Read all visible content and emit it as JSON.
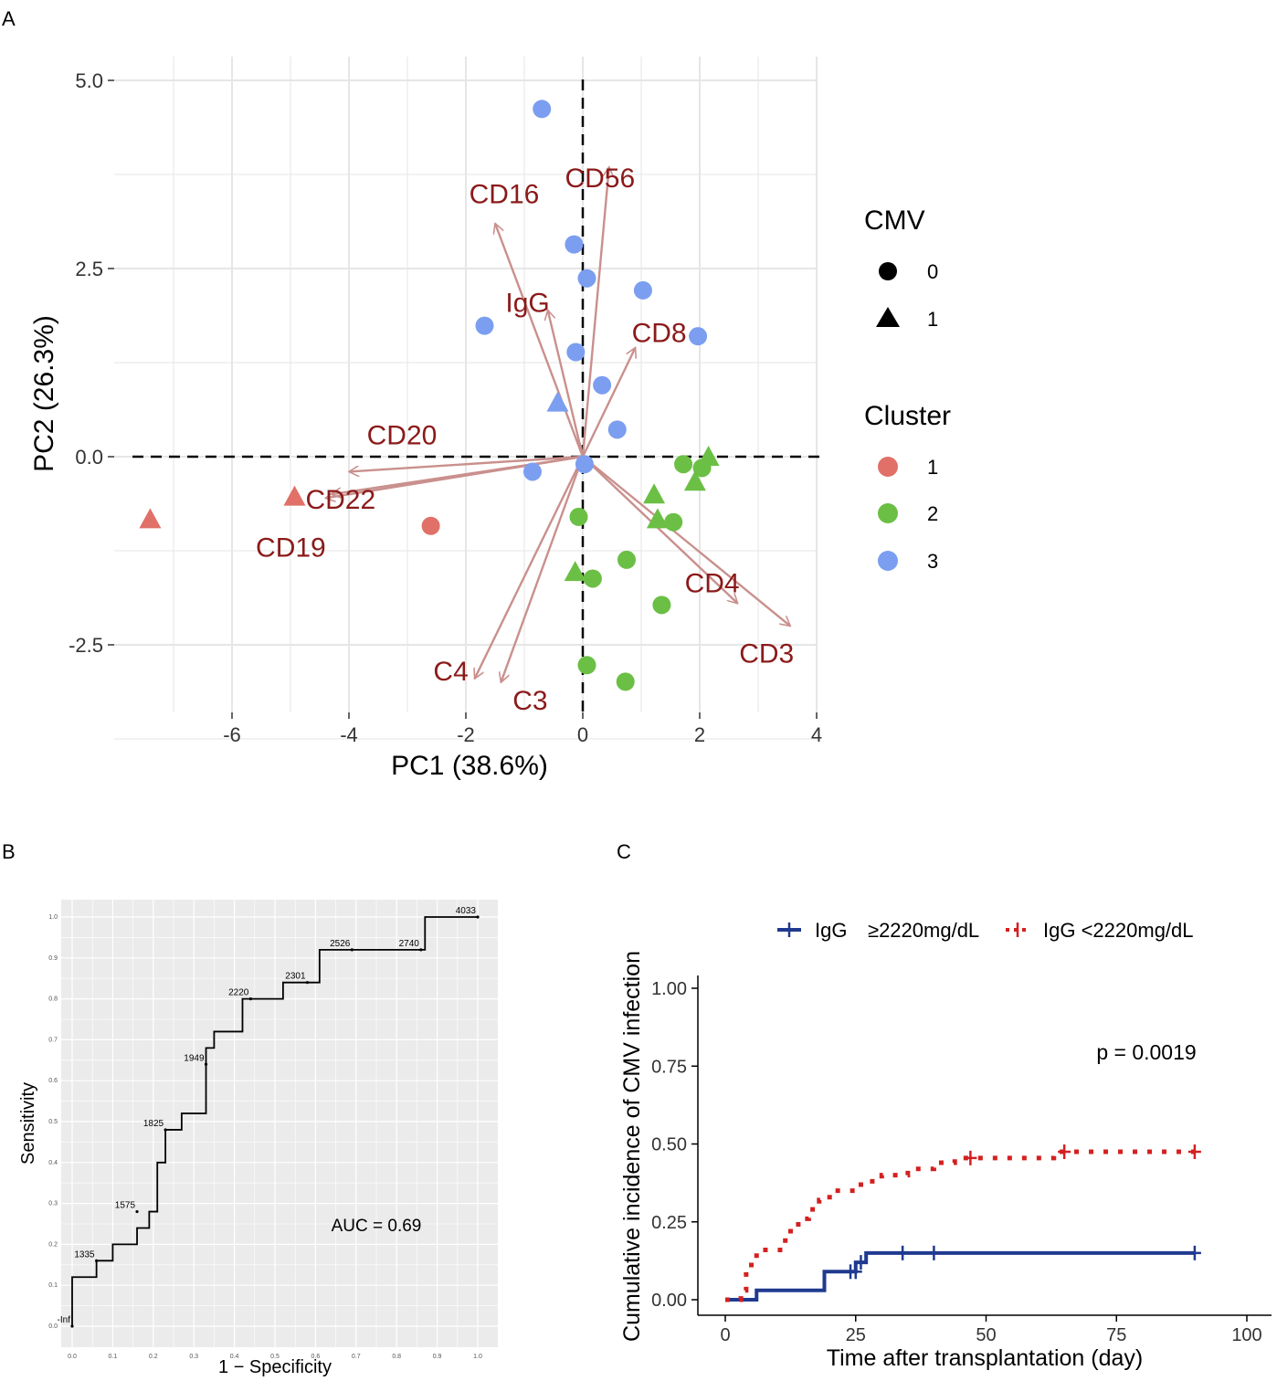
{
  "panel_labels": {
    "a": "A",
    "b": "B",
    "c": "C"
  },
  "chart_data": [
    {
      "type": "scatter",
      "subtype": "pca-biplot",
      "xlabel": "PC1 (38.6%)",
      "ylabel": "PC2 (26.3%)",
      "xlim": [
        -7.5,
        4.0
      ],
      "ylim": [
        -3.4,
        5.0
      ],
      "x_ticks": [
        -6,
        -4,
        -2,
        0,
        2,
        4
      ],
      "y_ticks": [
        -2.5,
        0.0,
        2.5,
        5.0
      ],
      "y_tick_labels": [
        "-2.5",
        "0.0",
        "2.5",
        "5.0"
      ],
      "grid": true,
      "reference_lines": [
        "x = 0 (dashed)",
        "y = 0 (dashed)"
      ],
      "legend": {
        "cmv_title": "CMV",
        "cmv_entries": [
          {
            "label": "0",
            "shape": "circle"
          },
          {
            "label": "1",
            "shape": "triangle"
          }
        ],
        "cluster_title": "Cluster",
        "cluster_entries": [
          {
            "label": "1",
            "color": "#e07068"
          },
          {
            "label": "2",
            "color": "#6bbf45"
          },
          {
            "label": "3",
            "color": "#7b9ef0"
          }
        ]
      },
      "points": [
        {
          "x": -0.7,
          "y": 4.62,
          "cmv": 0,
          "cluster": 3
        },
        {
          "x": -0.15,
          "y": 2.82,
          "cmv": 0,
          "cluster": 3
        },
        {
          "x": 0.07,
          "y": 2.37,
          "cmv": 0,
          "cluster": 3
        },
        {
          "x": 1.03,
          "y": 2.21,
          "cmv": 0,
          "cluster": 3
        },
        {
          "x": 1.97,
          "y": 1.6,
          "cmv": 0,
          "cluster": 3
        },
        {
          "x": -1.68,
          "y": 1.74,
          "cmv": 0,
          "cluster": 3
        },
        {
          "x": -0.12,
          "y": 1.39,
          "cmv": 0,
          "cluster": 3
        },
        {
          "x": 0.33,
          "y": 0.95,
          "cmv": 0,
          "cluster": 3
        },
        {
          "x": 0.59,
          "y": 0.36,
          "cmv": 0,
          "cluster": 3
        },
        {
          "x": -0.43,
          "y": 0.72,
          "cmv": 1,
          "cluster": 3
        },
        {
          "x": -0.86,
          "y": -0.2,
          "cmv": 0,
          "cluster": 3
        },
        {
          "x": 0.03,
          "y": -0.1,
          "cmv": 0,
          "cluster": 3
        },
        {
          "x": -7.4,
          "y": -0.83,
          "cmv": 1,
          "cluster": 1
        },
        {
          "x": -4.93,
          "y": -0.53,
          "cmv": 1,
          "cluster": 1
        },
        {
          "x": -2.6,
          "y": -0.92,
          "cmv": 0,
          "cluster": 1
        },
        {
          "x": 1.72,
          "y": -0.1,
          "cmv": 0,
          "cluster": 2
        },
        {
          "x": 2.04,
          "y": -0.15,
          "cmv": 0,
          "cluster": 2
        },
        {
          "x": 2.15,
          "y": 0.0,
          "cmv": 1,
          "cluster": 2
        },
        {
          "x": 1.92,
          "y": -0.33,
          "cmv": 1,
          "cluster": 2
        },
        {
          "x": 1.22,
          "y": -0.5,
          "cmv": 1,
          "cluster": 2
        },
        {
          "x": 1.28,
          "y": -0.83,
          "cmv": 1,
          "cluster": 2
        },
        {
          "x": 1.55,
          "y": -0.87,
          "cmv": 0,
          "cluster": 2
        },
        {
          "x": -0.07,
          "y": -0.8,
          "cmv": 0,
          "cluster": 2
        },
        {
          "x": 0.75,
          "y": -1.37,
          "cmv": 0,
          "cluster": 2
        },
        {
          "x": -0.13,
          "y": -1.53,
          "cmv": 1,
          "cluster": 2
        },
        {
          "x": 0.17,
          "y": -1.62,
          "cmv": 0,
          "cluster": 2
        },
        {
          "x": 1.35,
          "y": -1.97,
          "cmv": 0,
          "cluster": 2
        },
        {
          "x": 0.07,
          "y": -2.77,
          "cmv": 0,
          "cluster": 2
        },
        {
          "x": 0.73,
          "y": -2.99,
          "cmv": 0,
          "cluster": 2
        }
      ],
      "loadings": [
        {
          "label": "CD16",
          "x": -1.5,
          "y": 3.1
        },
        {
          "label": "CD56",
          "x": 0.45,
          "y": 3.85
        },
        {
          "label": "IgG",
          "x": -0.6,
          "y": 1.95
        },
        {
          "label": "CD8",
          "x": 0.9,
          "y": 1.45
        },
        {
          "label": "CD20",
          "x": -4.0,
          "y": -0.2
        },
        {
          "label": "CD22",
          "x": -4.3,
          "y": -0.5
        },
        {
          "label": "CD19",
          "x": -4.4,
          "y": -0.55
        },
        {
          "label": "CD4",
          "x": 2.65,
          "y": -1.95
        },
        {
          "label": "CD3",
          "x": 3.55,
          "y": -2.25
        },
        {
          "label": "C4",
          "x": -1.85,
          "y": -2.95
        },
        {
          "label": "C3",
          "x": -1.4,
          "y": -3.0
        }
      ]
    },
    {
      "type": "line",
      "subtype": "roc-curve",
      "xlabel": "1 − Specificity",
      "ylabel": "Sensitivity",
      "xlim": [
        0,
        1
      ],
      "ylim": [
        0,
        1
      ],
      "x_ticks": [
        0.0,
        0.1,
        0.2,
        0.3,
        0.4,
        0.5,
        0.6,
        0.7,
        0.8,
        0.9,
        1.0
      ],
      "x_tick_labels": [
        "0.0",
        "0.1",
        "0.2",
        "0.3",
        "0.4",
        "0.5",
        "0.6",
        "0.7",
        "0.8",
        "0.9",
        "1.0"
      ],
      "y_ticks": [
        0.0,
        0.1,
        0.2,
        0.3,
        0.4,
        0.5,
        0.6,
        0.7,
        0.8,
        0.9,
        1.0
      ],
      "y_tick_labels": [
        "0.0",
        "0.1",
        "0.2",
        "0.3",
        "0.4",
        "0.5",
        "0.6",
        "0.7",
        "0.8",
        "0.9",
        "1.0"
      ],
      "annotation": "AUC = 0.69",
      "auc": 0.69,
      "curve": [
        [
          0,
          0
        ],
        [
          0,
          0.12
        ],
        [
          0.06,
          0.12
        ],
        [
          0.06,
          0.16
        ],
        [
          0.1,
          0.16
        ],
        [
          0.1,
          0.2
        ],
        [
          0.16,
          0.2
        ],
        [
          0.16,
          0.24
        ],
        [
          0.19,
          0.24
        ],
        [
          0.19,
          0.28
        ],
        [
          0.21,
          0.28
        ],
        [
          0.21,
          0.4
        ],
        [
          0.23,
          0.4
        ],
        [
          0.23,
          0.48
        ],
        [
          0.27,
          0.48
        ],
        [
          0.27,
          0.52
        ],
        [
          0.33,
          0.52
        ],
        [
          0.33,
          0.68
        ],
        [
          0.35,
          0.68
        ],
        [
          0.35,
          0.72
        ],
        [
          0.42,
          0.72
        ],
        [
          0.42,
          0.8
        ],
        [
          0.52,
          0.8
        ],
        [
          0.52,
          0.84
        ],
        [
          0.61,
          0.84
        ],
        [
          0.61,
          0.92
        ],
        [
          0.87,
          0.92
        ],
        [
          0.87,
          1.0
        ],
        [
          1.0,
          1.0
        ]
      ],
      "thresholds": [
        {
          "label": "-Inf",
          "x": 0.0,
          "y": 0.0
        },
        {
          "label": "1335",
          "x": 0.06,
          "y": 0.16
        },
        {
          "label": "1575",
          "x": 0.16,
          "y": 0.28
        },
        {
          "label": "1825",
          "x": 0.23,
          "y": 0.48
        },
        {
          "label": "1949",
          "x": 0.33,
          "y": 0.64
        },
        {
          "label": "2220",
          "x": 0.44,
          "y": 0.8
        },
        {
          "label": "2301",
          "x": 0.58,
          "y": 0.84
        },
        {
          "label": "2526",
          "x": 0.69,
          "y": 0.92
        },
        {
          "label": "2740",
          "x": 0.86,
          "y": 0.92
        },
        {
          "label": "4033",
          "x": 1.0,
          "y": 1.0
        }
      ]
    },
    {
      "type": "line",
      "subtype": "cumulative-incidence",
      "xlabel": "Time after transplantation (day)",
      "ylabel": "Cumulative incidence of CMV infection",
      "xlim": [
        0,
        100
      ],
      "ylim": [
        0,
        1
      ],
      "x_ticks": [
        0,
        25,
        50,
        75,
        100
      ],
      "x_tick_labels": [
        "0",
        "25",
        "50",
        "75",
        "100"
      ],
      "y_ticks": [
        0.0,
        0.25,
        0.5,
        0.75,
        1.0
      ],
      "y_tick_labels": [
        "0.00",
        "0.25",
        "0.50",
        "0.75",
        "1.00"
      ],
      "annotation": "p = 0.0019",
      "series": [
        {
          "name": "IgG ≥2220mg/dL",
          "legend_label_a": "IgG",
          "legend_label_b": "≥2220mg/dL",
          "color": "#1f3a8f",
          "style": "solid",
          "steps": [
            [
              0,
              0
            ],
            [
              6,
              0
            ],
            [
              6,
              0.03
            ],
            [
              19,
              0.03
            ],
            [
              19,
              0.09
            ],
            [
              25,
              0.09
            ],
            [
              25,
              0.12
            ],
            [
              27,
              0.12
            ],
            [
              27,
              0.15
            ],
            [
              90,
              0.15
            ]
          ],
          "censored": [
            [
              24,
              0.09
            ],
            [
              25,
              0.09
            ],
            [
              26,
              0.12
            ],
            [
              34,
              0.15
            ],
            [
              40,
              0.15
            ],
            [
              90,
              0.15
            ]
          ]
        },
        {
          "name": "IgG <2220mg/dL",
          "legend_label": "IgG <2220mg/dL",
          "color": "#d42020",
          "style": "dotted",
          "steps": [
            [
              0,
              0
            ],
            [
              3,
              0
            ],
            [
              3,
              0.03
            ],
            [
              4,
              0.03
            ],
            [
              4,
              0.09
            ],
            [
              5,
              0.09
            ],
            [
              5,
              0.13
            ],
            [
              6,
              0.13
            ],
            [
              6,
              0.16
            ],
            [
              11,
              0.16
            ],
            [
              11,
              0.19
            ],
            [
              12,
              0.19
            ],
            [
              12,
              0.22
            ],
            [
              14,
              0.22
            ],
            [
              14,
              0.26
            ],
            [
              16,
              0.26
            ],
            [
              16,
              0.29
            ],
            [
              18,
              0.29
            ],
            [
              18,
              0.32
            ],
            [
              20,
              0.32
            ],
            [
              20,
              0.35
            ],
            [
              26,
              0.35
            ],
            [
              26,
              0.38
            ],
            [
              30,
              0.38
            ],
            [
              30,
              0.4
            ],
            [
              35,
              0.4
            ],
            [
              35,
              0.42
            ],
            [
              40,
              0.42
            ],
            [
              40,
              0.44
            ],
            [
              44,
              0.44
            ],
            [
              44,
              0.455
            ],
            [
              63,
              0.455
            ],
            [
              63,
              0.475
            ],
            [
              90,
              0.475
            ]
          ],
          "censored": [
            [
              47,
              0.455
            ],
            [
              65,
              0.475
            ],
            [
              90,
              0.475
            ]
          ]
        }
      ]
    }
  ]
}
